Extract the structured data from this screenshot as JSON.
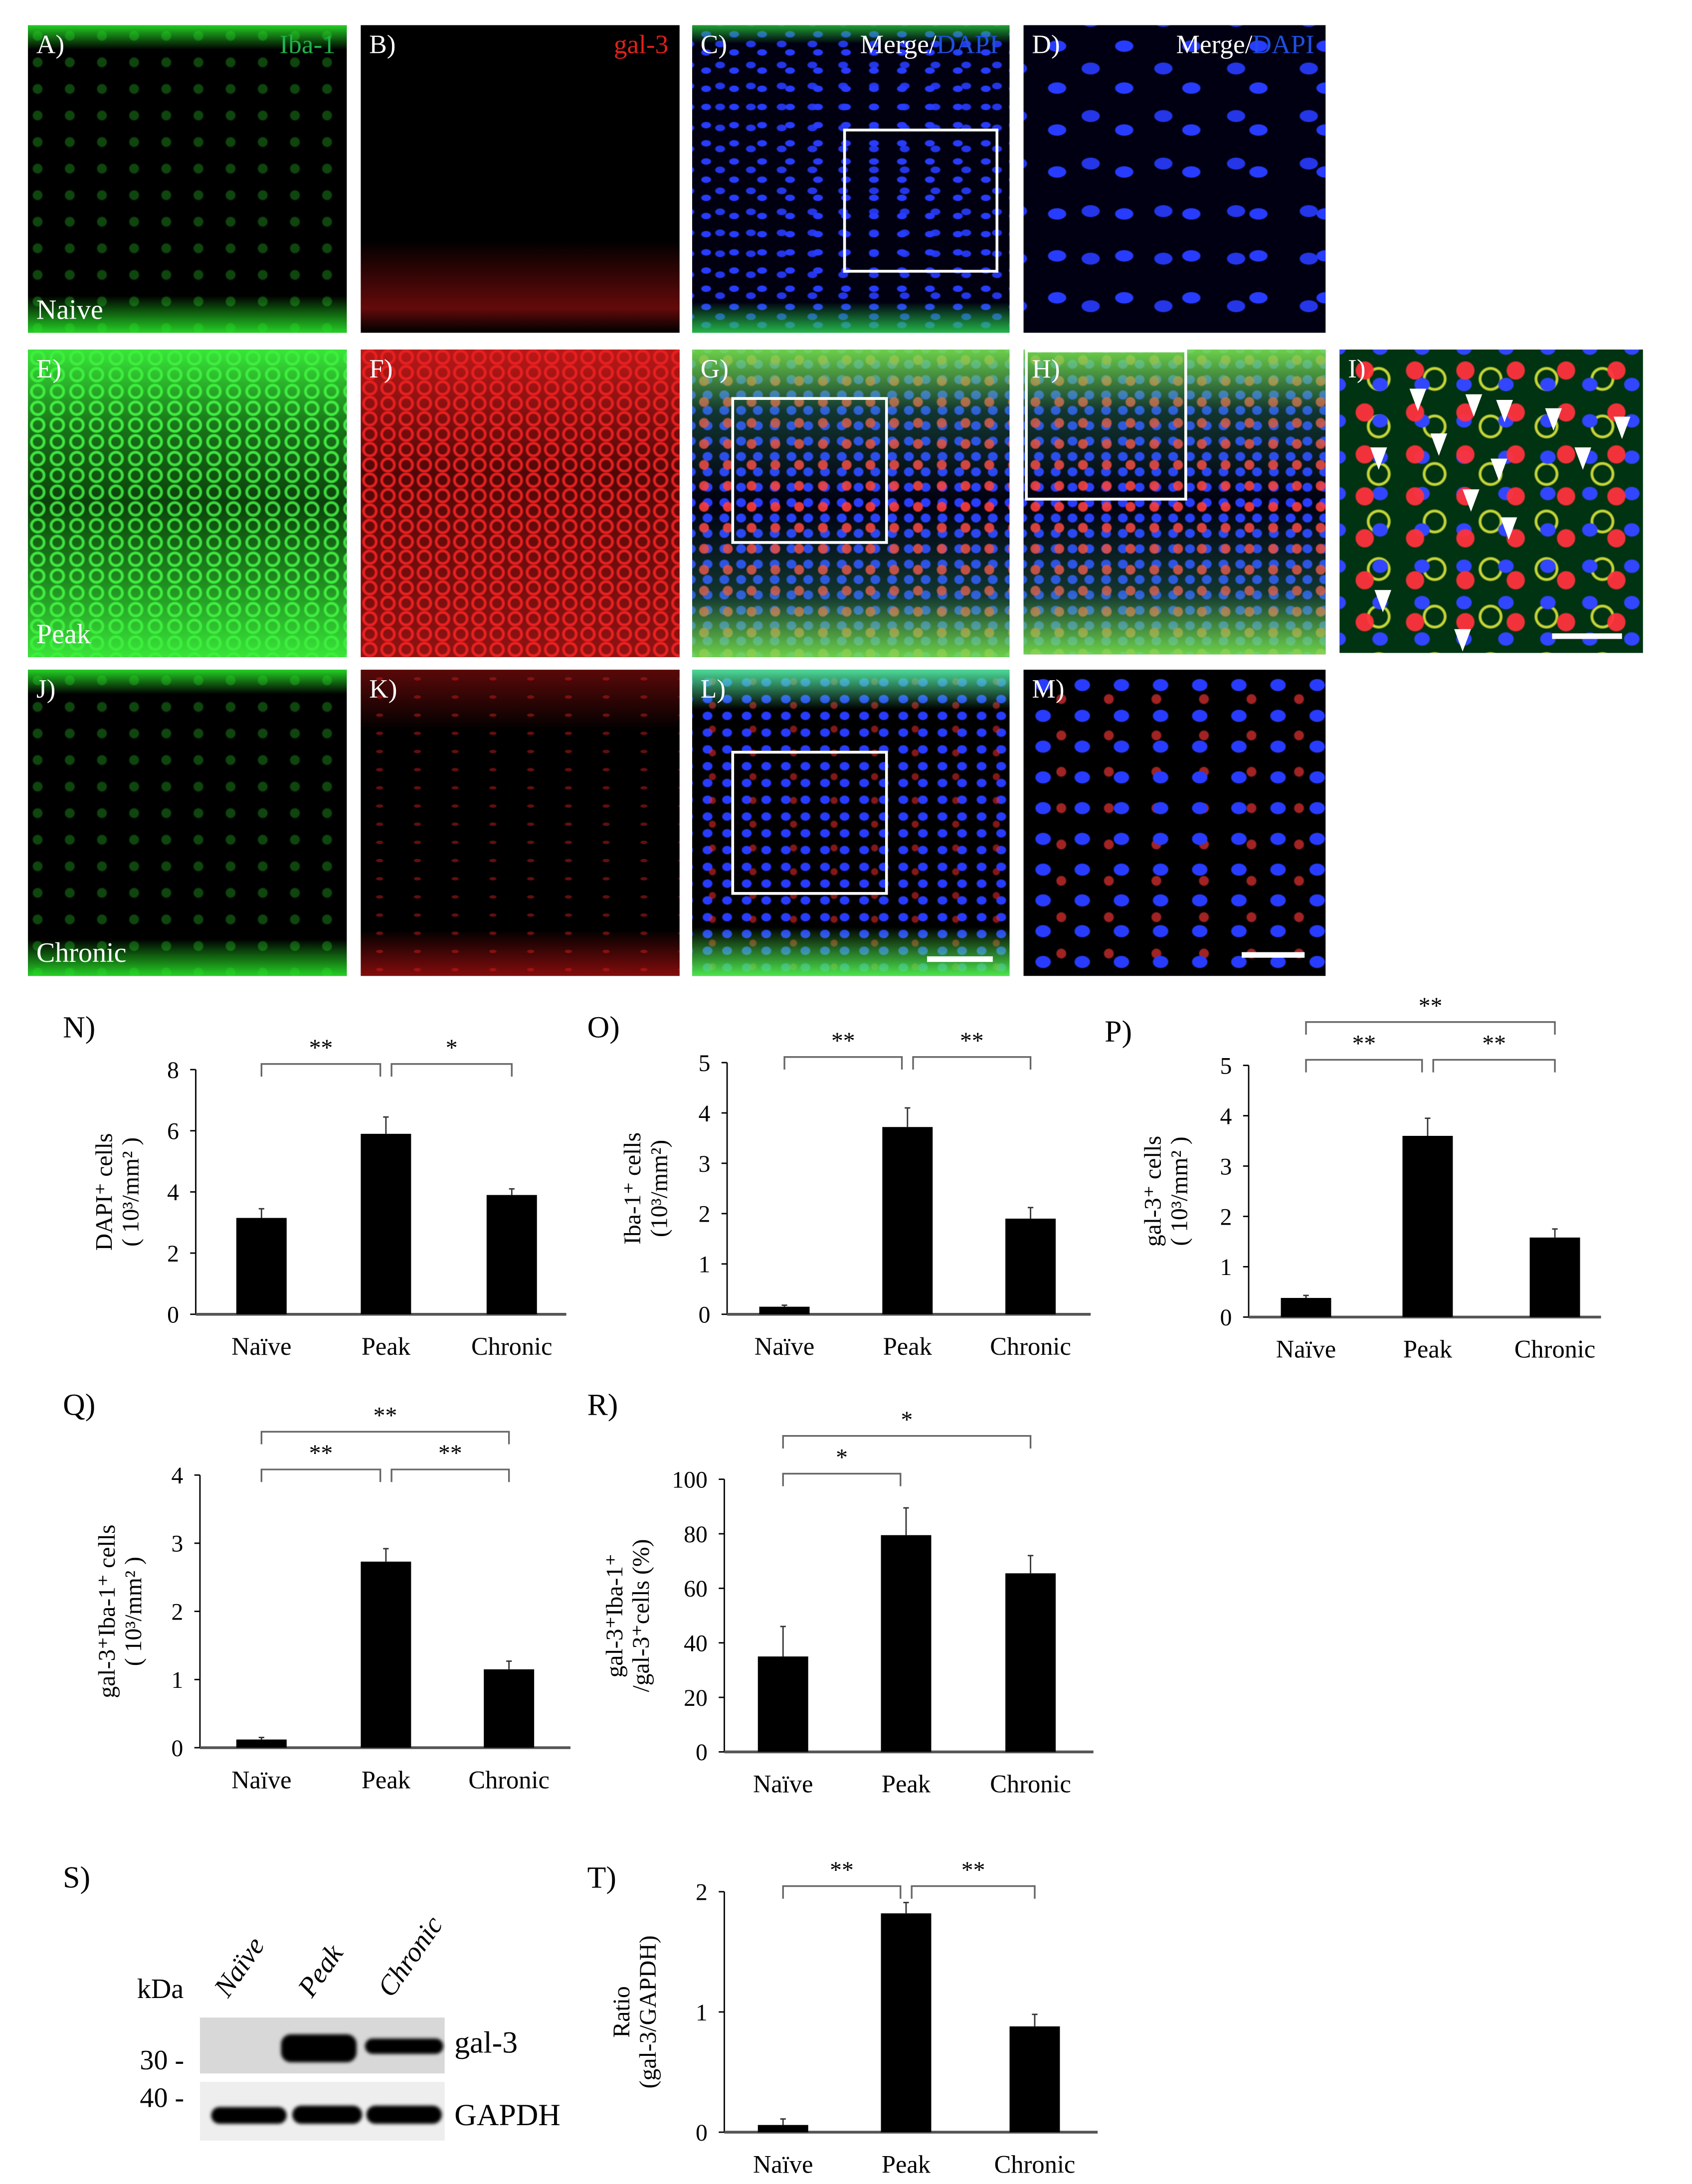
{
  "micrographs": {
    "rows": [
      {
        "condition": "Naive",
        "panels": [
          {
            "label": "A)",
            "stain": "Iba-1",
            "stain_color": "#1fb24a"
          },
          {
            "label": "B)",
            "stain": "gal-3",
            "stain_color": "#e0201c"
          },
          {
            "label": "C)",
            "stain_prefix": "Merge/",
            "stain": "DAPI",
            "stain_color": "#1f4fe0"
          },
          {
            "label": "D)",
            "stain_prefix": "Merge/",
            "stain": "DAPI",
            "stain_color": "#1f4fe0"
          }
        ]
      },
      {
        "condition": "Peak",
        "panels": [
          {
            "label": "E)"
          },
          {
            "label": "F)"
          },
          {
            "label": "G)"
          },
          {
            "label": "H)"
          },
          {
            "label": "I)"
          }
        ]
      },
      {
        "condition": "Chronic",
        "panels": [
          {
            "label": "J)"
          },
          {
            "label": "K)"
          },
          {
            "label": "L)"
          },
          {
            "label": "M)"
          }
        ]
      }
    ]
  },
  "western_blot": {
    "panel_label": "S)",
    "unit": "kDa",
    "lanes": [
      "Naïve",
      "Peak",
      "Chronic"
    ],
    "markers": [
      "30 -",
      "40 -"
    ],
    "bands": [
      "gal-3",
      "GAPDH"
    ],
    "gal3_intensity": [
      0,
      1.0,
      0.6
    ],
    "gapdh_intensity": [
      1.0,
      0.95,
      1.0
    ]
  },
  "chart_data": [
    {
      "panel": "N)",
      "type": "bar",
      "categories": [
        "Naïve",
        "Peak",
        "Chronic"
      ],
      "values": [
        3.15,
        5.9,
        3.9
      ],
      "errors": [
        0.3,
        0.55,
        0.2
      ],
      "ylabel": [
        "DAPI⁺ cells",
        "( 10³/mm² )"
      ],
      "ylim": [
        0,
        8
      ],
      "yticks": [
        "0",
        "2",
        "4",
        "6",
        "8"
      ],
      "significance": [
        {
          "from": 0,
          "to": 1,
          "level": 0,
          "label": "**"
        },
        {
          "from": 1,
          "to": 2,
          "level": 0,
          "label": "*"
        }
      ]
    },
    {
      "panel": "O)",
      "type": "bar",
      "categories": [
        "Naïve",
        "Peak",
        "Chronic"
      ],
      "values": [
        0.15,
        3.72,
        1.9
      ],
      "errors": [
        0.03,
        0.38,
        0.22
      ],
      "ylabel": [
        "Iba-1⁺ cells",
        "(10³/mm²)"
      ],
      "ylim": [
        0,
        5
      ],
      "yticks": [
        "0",
        "1",
        "2",
        "3",
        "4",
        "5"
      ],
      "significance": [
        {
          "from": 0,
          "to": 1,
          "level": 0,
          "label": "**"
        },
        {
          "from": 1,
          "to": 2,
          "level": 0,
          "label": "**"
        }
      ]
    },
    {
      "panel": "P)",
      "type": "bar",
      "categories": [
        "Naïve",
        "Peak",
        "Chronic"
      ],
      "values": [
        0.38,
        3.6,
        1.58
      ],
      "errors": [
        0.05,
        0.35,
        0.17
      ],
      "ylabel": [
        "gal-3⁺ cells",
        "( 10³/mm² )"
      ],
      "ylim": [
        0,
        5
      ],
      "yticks": [
        "0",
        "1",
        "2",
        "3",
        "4",
        "5"
      ],
      "significance": [
        {
          "from": 0,
          "to": 1,
          "level": 0,
          "label": "**"
        },
        {
          "from": 1,
          "to": 2,
          "level": 0,
          "label": "**"
        },
        {
          "from": 0,
          "to": 2,
          "level": 1,
          "label": "**"
        }
      ]
    },
    {
      "panel": "Q)",
      "type": "bar",
      "categories": [
        "Naïve",
        "Peak",
        "Chronic"
      ],
      "values": [
        0.12,
        2.73,
        1.15
      ],
      "errors": [
        0.03,
        0.19,
        0.12
      ],
      "ylabel": [
        "gal-3⁺Iba-1⁺ cells",
        "( 10³/mm² )"
      ],
      "ylim": [
        0,
        4
      ],
      "yticks": [
        "0",
        "1",
        "2",
        "3",
        "4"
      ],
      "significance": [
        {
          "from": 0,
          "to": 1,
          "level": 0,
          "label": "**"
        },
        {
          "from": 1,
          "to": 2,
          "level": 0,
          "label": "**"
        },
        {
          "from": 0,
          "to": 2,
          "level": 1,
          "label": "**"
        }
      ]
    },
    {
      "panel": "R)",
      "type": "bar",
      "categories": [
        "Naïve",
        "Peak",
        "Chronic"
      ],
      "values": [
        35,
        79.5,
        65.5
      ],
      "errors": [
        11,
        10,
        6.5
      ],
      "ylabel": [
        "gal-3⁺Iba-1⁺",
        "/gal-3⁺cells (%)"
      ],
      "ylim": [
        0,
        100
      ],
      "yticks": [
        "0",
        "20",
        "40",
        "60",
        "80",
        "100"
      ],
      "significance": [
        {
          "from": 0,
          "to": 1,
          "level": 0,
          "label": "*"
        },
        {
          "from": 0,
          "to": 2,
          "level": 1,
          "label": "*"
        }
      ]
    },
    {
      "panel": "T)",
      "type": "bar",
      "categories": [
        "Naïve",
        "Peak",
        "Chronic"
      ],
      "values": [
        0.06,
        1.82,
        0.88
      ],
      "errors": [
        0.05,
        0.09,
        0.1
      ],
      "ylabel": [
        "Ratio",
        "(gal-3/GAPDH)"
      ],
      "ylim": [
        0,
        2
      ],
      "yticks": [
        "0",
        "1",
        "2"
      ],
      "significance": [
        {
          "from": 0,
          "to": 1,
          "level": 0,
          "label": "**"
        },
        {
          "from": 1,
          "to": 2,
          "level": 0,
          "label": "**"
        }
      ]
    }
  ]
}
